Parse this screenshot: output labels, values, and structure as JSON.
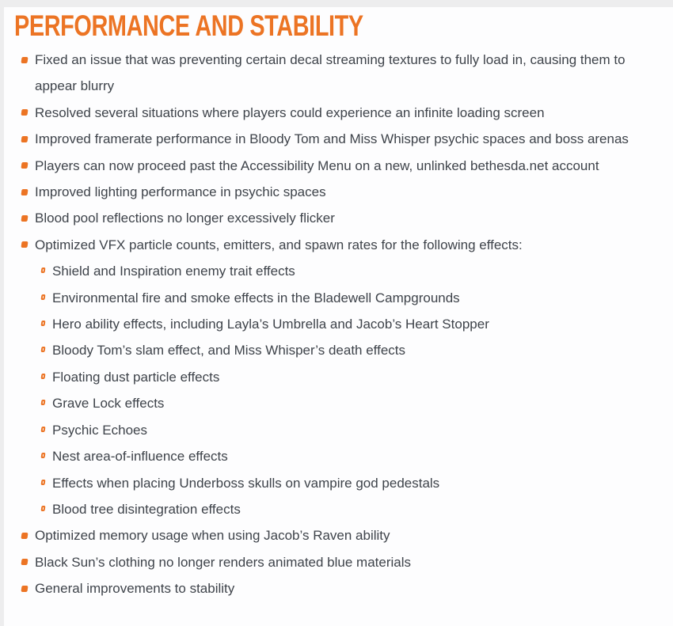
{
  "colors": {
    "accent_orange": "#ec7424",
    "body_text": "#3e434a",
    "page_background": "#ededee",
    "content_background": "#fdfdfe"
  },
  "section": {
    "title": "PERFORMANCE AND STABILITY",
    "items": [
      {
        "level": "top",
        "text": "Fixed an issue that was preventing certain decal streaming textures to fully load in, causing them to appear blurry"
      },
      {
        "level": "top",
        "text": "Resolved several situations where players could experience an infinite loading screen"
      },
      {
        "level": "top",
        "text": "Improved framerate performance in Bloody Tom and Miss Whisper psychic spaces and boss arenas"
      },
      {
        "level": "top",
        "text": "Players can now proceed past the Accessibility Menu on a new, unlinked bethesda.net account"
      },
      {
        "level": "top",
        "text": "Improved lighting performance in psychic spaces"
      },
      {
        "level": "top",
        "text": "Blood pool reflections no longer excessively flicker"
      },
      {
        "level": "top",
        "text": "Optimized VFX particle counts, emitters, and spawn rates for the following effects:"
      },
      {
        "level": "sub",
        "text": "Shield and Inspiration enemy trait effects"
      },
      {
        "level": "sub",
        "text": "Environmental fire and smoke effects in the Bladewell Campgrounds"
      },
      {
        "level": "sub",
        "text": "Hero ability effects, including Layla’s Umbrella and Jacob’s Heart Stopper"
      },
      {
        "level": "sub",
        "text": "Bloody Tom’s slam effect, and Miss Whisper’s death effects"
      },
      {
        "level": "sub",
        "text": "Floating dust particle effects"
      },
      {
        "level": "sub",
        "text": "Grave Lock effects"
      },
      {
        "level": "sub",
        "text": "Psychic Echoes"
      },
      {
        "level": "sub",
        "text": "Nest area-of-influence effects"
      },
      {
        "level": "sub",
        "text": "Effects when placing Underboss skulls on vampire god pedestals"
      },
      {
        "level": "sub",
        "text": "Blood tree disintegration effects"
      },
      {
        "level": "top",
        "text": "Optimized memory usage when using Jacob’s Raven ability"
      },
      {
        "level": "top",
        "text": "Black Sun’s clothing no longer renders animated blue materials"
      },
      {
        "level": "top",
        "text": "General improvements to stability"
      }
    ]
  }
}
